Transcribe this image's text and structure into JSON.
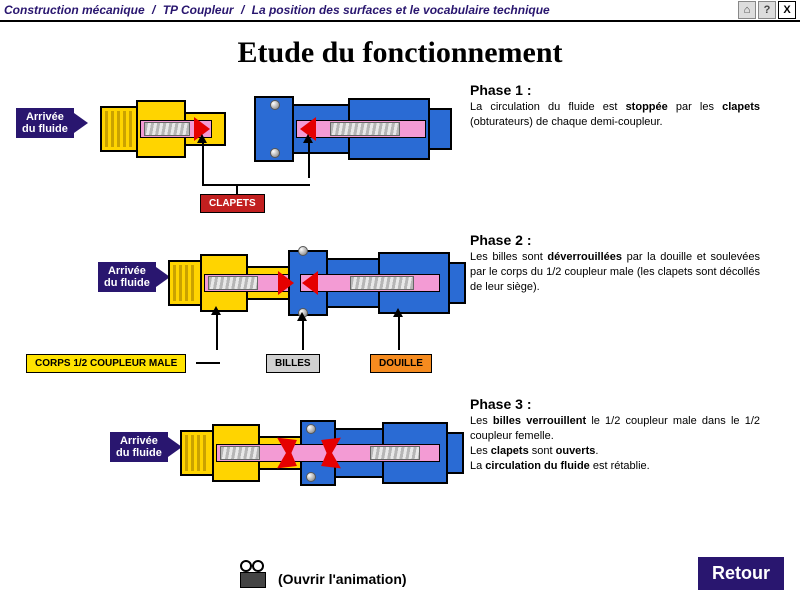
{
  "breadcrumb": {
    "part1": "Construction mécanique",
    "part2": "TP Coupleur",
    "part3": "La position des surfaces et le vocabulaire technique",
    "sep": "/"
  },
  "topbar": {
    "home_icon": "⌂",
    "help_icon": "?",
    "close_icon": "X"
  },
  "title": "Etude du fonctionnement",
  "arrivee_line1": "Arrivée",
  "arrivee_line2": "du fluide",
  "labels": {
    "clapets": "CLAPETS",
    "corps": "CORPS 1/2 COUPLEUR MALE",
    "billes": "BILLES",
    "douille": "DOUILLE"
  },
  "phase1": {
    "title": "Phase 1 :",
    "html": "La circulation du fluide est <b>stoppée</b> par les <b>clapets</b> (obturateurs) de chaque demi-coupleur."
  },
  "phase2": {
    "title": "Phase 2 :",
    "html": "Les billes sont <b>déverrouillées</b> par la douille et soulevées par le corps du 1/2 coupleur male (les clapets sont décollés de leur siège)."
  },
  "phase3": {
    "title": "Phase 3 :",
    "html": "Les <b>billes verrouillent</b> le 1/2 coupleur male dans le 1/2 coupleur femelle.<br>Les <b>clapets</b> sont <b>ouverts</b>.<br>La <b>circulation du fluide</b> est rétablie."
  },
  "footer": {
    "anim": "(Ouvrir l'animation)",
    "retour": "Retour"
  },
  "colors": {
    "navy": "#29166f",
    "blue": "#2a6bd4",
    "yellow": "#ffd400",
    "pink": "#f39bd4",
    "red": "#e50000",
    "orange": "#f58b1f",
    "grey": "#d0d0d0",
    "label_yellow": "#ffe300",
    "label_red": "#c21f1f"
  }
}
